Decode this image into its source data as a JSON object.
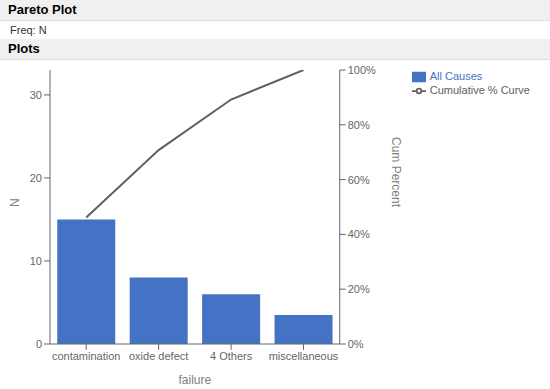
{
  "chart_data": {
    "type": "bar",
    "title": "Pareto Plot",
    "subtitle": "Freq: N",
    "annotations": [
      "Plots"
    ],
    "categories": [
      "contamination",
      "oxide defect",
      "4 Others",
      "miscellaneous"
    ],
    "series": [
      {
        "name": "All Causes",
        "type": "bar",
        "color": "#4472C4",
        "values": [
          15,
          8,
          6,
          3.5
        ]
      },
      {
        "name": "Cumulative % Curve",
        "type": "line",
        "color": "#606060",
        "axis": "y2",
        "marker": "none",
        "values": [
          46.15,
          70.77,
          89.23,
          100.0
        ]
      }
    ],
    "xlabel": "failure",
    "ylabel": "N",
    "y2label": "Cum Percent",
    "ylim": [
      0,
      33
    ],
    "yticks": [
      0,
      10,
      20,
      30
    ],
    "y2lim": [
      0,
      100
    ],
    "y2ticks": [
      {
        "value": 0,
        "label": "0%"
      },
      {
        "value": 20,
        "label": "20%"
      },
      {
        "value": 40,
        "label": "40%"
      },
      {
        "value": 60,
        "label": "60%"
      },
      {
        "value": 80,
        "label": "80%"
      },
      {
        "value": 100,
        "label": "100%"
      }
    ],
    "grid": false,
    "legend": "right"
  }
}
